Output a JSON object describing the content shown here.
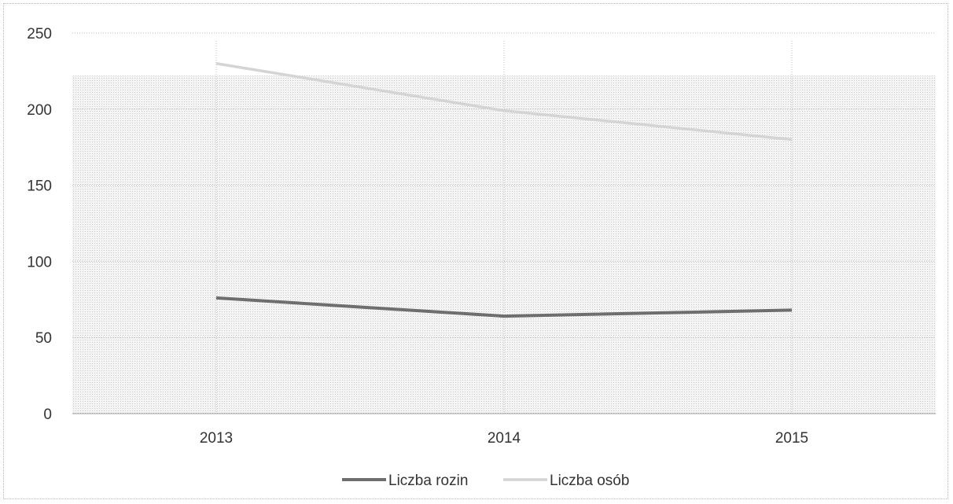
{
  "chart_data": {
    "type": "line",
    "categories": [
      "2013",
      "2014",
      "2015"
    ],
    "series": [
      {
        "name": "Liczba rozin",
        "values": [
          76,
          64,
          68
        ],
        "color": "#6e6e6e"
      },
      {
        "name": "Liczba osób",
        "values": [
          230,
          199,
          180
        ],
        "color": "#d4d4d4"
      }
    ],
    "ylim": [
      0,
      250
    ],
    "yticks": [
      0,
      50,
      100,
      150,
      200,
      250
    ],
    "grid": true,
    "legend_position": "bottom"
  }
}
